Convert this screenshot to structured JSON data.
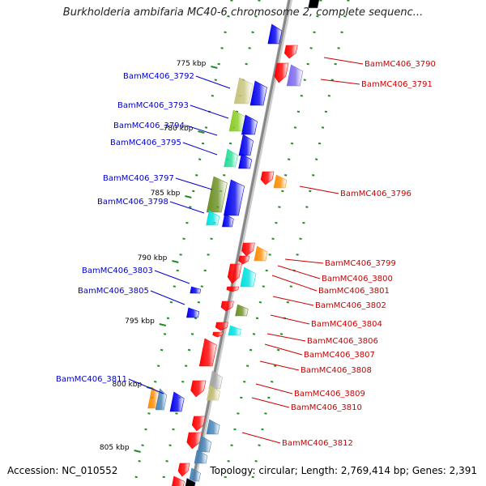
{
  "title": "Burkholderia ambifaria MC40-6 chromosome 2, complete sequenc...",
  "footer": {
    "accession": "Accession: NC_010552",
    "topology": "Topology: circular; Length: 2,769,414 bp; Genes: 2,391"
  },
  "colors": {
    "left_label": "#0000cc",
    "right_label": "#cc0000",
    "backbone": "#888888",
    "tick": "#228b22"
  },
  "scale": {
    "unit": "kbp",
    "ticks": [
      "775 kbp",
      "780 kbp",
      "785 kbp",
      "790 kbp",
      "795 kbp",
      "800 kbp",
      "805 kbp"
    ]
  },
  "left_genes": [
    "BamMC406_3792",
    "BamMC406_3793",
    "BamMC406_3794",
    "BamMC406_3795",
    "BamMC406_3797",
    "BamMC406_3798",
    "BamMC406_3803",
    "BamMC406_3805",
    "BamMC406_3811"
  ],
  "right_genes": [
    "BamMC406_3790",
    "BamMC406_3791",
    "BamMC406_3796",
    "BamMC406_3799",
    "BamMC406_3800",
    "BamMC406_3801",
    "BamMC406_3802",
    "BamMC406_3804",
    "BamMC406_3806",
    "BamMC406_3807",
    "BamMC406_3808",
    "BamMC406_3809",
    "BamMC406_3810",
    "BamMC406_3812"
  ]
}
